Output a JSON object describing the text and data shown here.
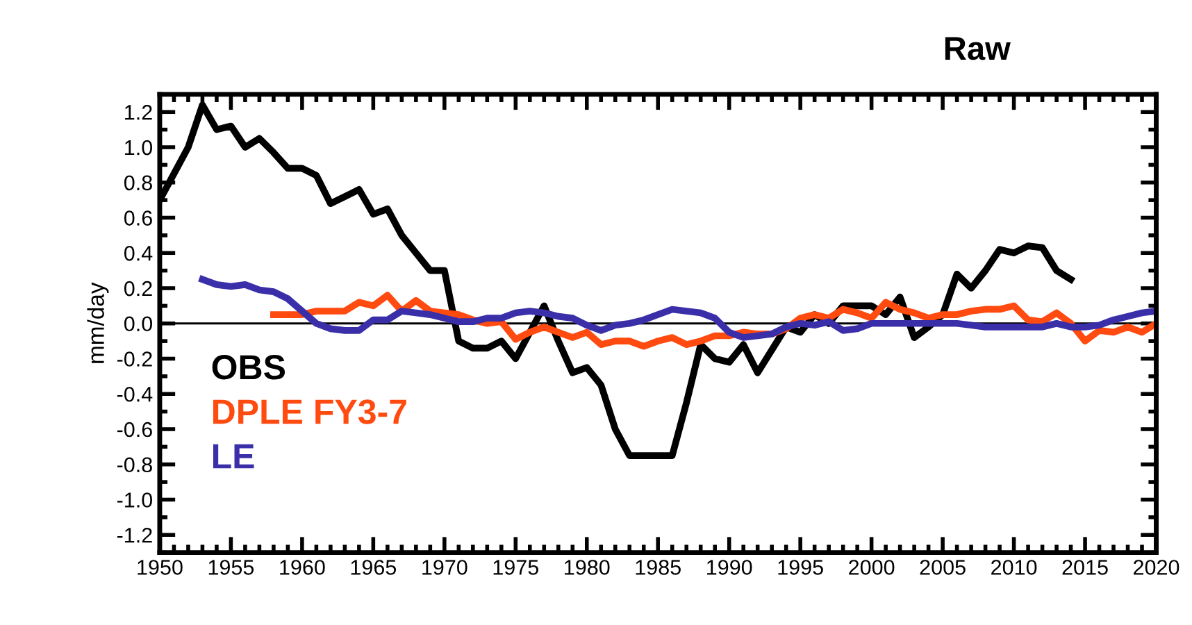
{
  "chart_data": {
    "type": "line",
    "title": "Raw",
    "ylabel": "mm/day",
    "xlim": [
      1950,
      2020
    ],
    "xticks": [
      1950,
      1955,
      1960,
      1965,
      1970,
      1975,
      1980,
      1985,
      1990,
      1995,
      2000,
      2005,
      2010,
      2015,
      2020
    ],
    "ylim": [
      -1.3,
      1.3
    ],
    "yticks": [
      {
        "value": 1.2,
        "label": "1.2"
      },
      {
        "value": 1.0,
        "label": "1.0"
      },
      {
        "value": 0.8,
        "label": "0.8"
      },
      {
        "value": 0.6,
        "label": "0.6"
      },
      {
        "value": 0.4,
        "label": "0.4"
      },
      {
        "value": 0.2,
        "label": "0.2"
      },
      {
        "value": 0.0,
        "label": "0.0"
      },
      {
        "value": -0.2,
        "label": "-0.2"
      },
      {
        "value": -0.4,
        "label": "-0.4"
      },
      {
        "value": -0.6,
        "label": "-0.6"
      },
      {
        "value": -0.8,
        "label": "-0.8"
      },
      {
        "value": -1.0,
        "label": "-1.0"
      },
      {
        "value": -1.2,
        "label": "-1.2"
      }
    ],
    "grid": false,
    "legend": "bottom left",
    "marker": "none",
    "line_style": "solid",
    "ref_lines": [
      {
        "axis": "y",
        "value": 0,
        "color": "#000000"
      }
    ],
    "series": [
      {
        "name": "OBS",
        "color": "#000000",
        "x": [
          1950,
          1951,
          1952,
          1953,
          1954,
          1955,
          1956,
          1957,
          1958,
          1959,
          1960,
          1961,
          1962,
          1963,
          1964,
          1965,
          1966,
          1967,
          1968,
          1969,
          1970,
          1971,
          1972,
          1973,
          1974,
          1975,
          1976,
          1977,
          1978,
          1979,
          1980,
          1981,
          1982,
          1983,
          1984,
          1985,
          1986,
          1987,
          1988,
          1989,
          1990,
          1991,
          1992,
          1993,
          1994,
          1995,
          1996,
          1997,
          1998,
          1999,
          2000,
          2001,
          2002,
          2003,
          2004,
          2005,
          2006,
          2007,
          2008,
          2009,
          2010,
          2011,
          2012,
          2013,
          2014
        ],
        "values": [
          0.7,
          0.85,
          1.0,
          1.24,
          1.1,
          1.12,
          1.0,
          1.05,
          0.97,
          0.88,
          0.88,
          0.84,
          0.68,
          0.72,
          0.76,
          0.62,
          0.65,
          0.5,
          0.4,
          0.3,
          0.3,
          -0.1,
          -0.14,
          -0.14,
          -0.1,
          -0.2,
          -0.05,
          0.1,
          -0.1,
          -0.28,
          -0.25,
          -0.35,
          -0.6,
          -0.75,
          -0.75,
          -0.75,
          -0.75,
          -0.45,
          -0.12,
          -0.2,
          -0.22,
          -0.12,
          -0.28,
          -0.15,
          -0.02,
          -0.05,
          0.05,
          0.0,
          0.1,
          0.1,
          0.1,
          0.05,
          0.15,
          -0.08,
          -0.02,
          0.05,
          0.28,
          0.2,
          0.3,
          0.42,
          0.4,
          0.44,
          0.43,
          0.3,
          0.25
        ]
      },
      {
        "name": "DPLE FY3-7",
        "color": "#ff4a10",
        "x": [
          1958,
          1959,
          1960,
          1961,
          1962,
          1963,
          1964,
          1965,
          1966,
          1967,
          1968,
          1969,
          1970,
          1971,
          1972,
          1973,
          1974,
          1975,
          1976,
          1977,
          1978,
          1979,
          1980,
          1981,
          1982,
          1983,
          1984,
          1985,
          1986,
          1987,
          1988,
          1989,
          1990,
          1991,
          1992,
          1993,
          1994,
          1995,
          1996,
          1997,
          1998,
          1999,
          2000,
          2001,
          2002,
          2003,
          2004,
          2005,
          2006,
          2007,
          2008,
          2009,
          2010,
          2011,
          2012,
          2013,
          2014,
          2015,
          2016,
          2017,
          2018,
          2019,
          2020
        ],
        "values": [
          0.05,
          0.05,
          0.05,
          0.07,
          0.07,
          0.07,
          0.12,
          0.1,
          0.16,
          0.07,
          0.13,
          0.07,
          0.06,
          0.05,
          0.02,
          0.0,
          0.01,
          -0.09,
          -0.05,
          -0.02,
          -0.05,
          -0.08,
          -0.05,
          -0.12,
          -0.1,
          -0.1,
          -0.13,
          -0.1,
          -0.08,
          -0.12,
          -0.1,
          -0.07,
          -0.07,
          -0.05,
          -0.06,
          -0.06,
          -0.03,
          0.03,
          0.05,
          0.03,
          0.08,
          0.06,
          0.03,
          0.12,
          0.08,
          0.06,
          0.03,
          0.05,
          0.05,
          0.07,
          0.08,
          0.08,
          0.1,
          0.02,
          0.01,
          0.06,
          0.0,
          -0.1,
          -0.04,
          -0.05,
          -0.02,
          -0.05,
          0.0
        ]
      },
      {
        "name": "LE",
        "color": "#3a2fa8",
        "x": [
          1953,
          1954,
          1955,
          1956,
          1957,
          1958,
          1959,
          1960,
          1961,
          1962,
          1963,
          1964,
          1965,
          1966,
          1967,
          1968,
          1969,
          1970,
          1971,
          1972,
          1973,
          1974,
          1975,
          1976,
          1977,
          1978,
          1979,
          1980,
          1981,
          1982,
          1983,
          1984,
          1985,
          1986,
          1987,
          1988,
          1989,
          1990,
          1991,
          1992,
          1993,
          1994,
          1995,
          1996,
          1997,
          1998,
          1999,
          2000,
          2001,
          2002,
          2003,
          2004,
          2005,
          2006,
          2007,
          2008,
          2009,
          2010,
          2011,
          2012,
          2013,
          2014,
          2015,
          2016,
          2017,
          2018,
          2019,
          2020
        ],
        "values": [
          0.25,
          0.22,
          0.21,
          0.22,
          0.19,
          0.18,
          0.14,
          0.07,
          0.0,
          -0.03,
          -0.04,
          -0.04,
          0.02,
          0.02,
          0.07,
          0.06,
          0.05,
          0.03,
          0.01,
          0.01,
          0.03,
          0.03,
          0.06,
          0.07,
          0.06,
          0.04,
          0.03,
          -0.01,
          -0.04,
          -0.01,
          0.0,
          0.02,
          0.05,
          0.08,
          0.07,
          0.06,
          0.03,
          -0.05,
          -0.08,
          -0.07,
          -0.06,
          -0.02,
          0.0,
          -0.01,
          0.01,
          -0.04,
          -0.03,
          0.0,
          0.0,
          0.0,
          0.0,
          0.0,
          0.0,
          0.0,
          -0.01,
          -0.02,
          -0.02,
          -0.02,
          -0.02,
          -0.02,
          0.0,
          -0.02,
          -0.02,
          -0.01,
          0.02,
          0.04,
          0.06,
          0.07
        ]
      }
    ]
  }
}
